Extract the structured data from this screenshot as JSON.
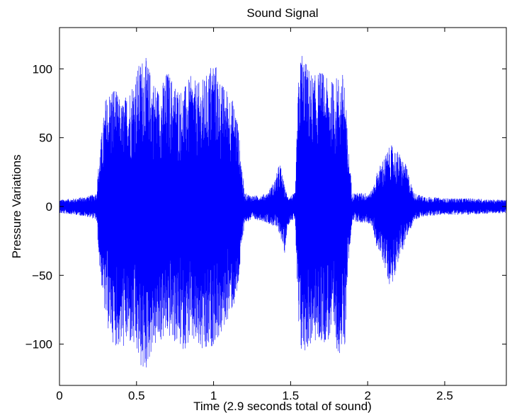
{
  "chart_data": {
    "type": "line",
    "title": "Sound Signal",
    "xlabel": "Time (2.9 seconds total of sound)",
    "ylabel": "Pressure Variations",
    "xlim": [
      0,
      2.9
    ],
    "ylim": [
      -130,
      130
    ],
    "grid": false,
    "legend": "none",
    "series_color": "#0000ff",
    "x_ticks": [
      0,
      0.5,
      1,
      1.5,
      2,
      2.5
    ],
    "x_tick_labels": [
      "0",
      "0.5",
      "1",
      "1.5",
      "2",
      "2.5"
    ],
    "y_ticks": [
      -100,
      -50,
      0,
      50,
      100
    ],
    "y_tick_labels": [
      "−100",
      "−50",
      "0",
      "50",
      "100"
    ],
    "sample_step_seconds": 0.005,
    "envelope": {
      "description": "approximate upper and lower amplitude bounds of the waveform over time",
      "x": [
        0,
        0.1,
        0.2,
        0.24,
        0.26,
        0.3,
        0.35,
        0.4,
        0.45,
        0.5,
        0.55,
        0.6,
        0.65,
        0.7,
        0.75,
        0.8,
        0.85,
        0.9,
        0.95,
        1.0,
        1.05,
        1.1,
        1.15,
        1.2,
        1.25,
        1.3,
        1.35,
        1.4,
        1.43,
        1.46,
        1.48,
        1.5,
        1.53,
        1.55,
        1.57,
        1.6,
        1.65,
        1.7,
        1.75,
        1.8,
        1.85,
        1.87,
        1.9,
        1.95,
        2.0,
        2.03,
        2.06,
        2.1,
        2.15,
        2.2,
        2.25,
        2.3,
        2.35,
        2.4,
        2.5,
        2.6,
        2.7,
        2.8,
        2.9
      ],
      "upper": [
        5,
        6,
        8,
        10,
        40,
        80,
        90,
        75,
        85,
        100,
        112,
        95,
        85,
        100,
        90,
        85,
        95,
        90,
        95,
        110,
        90,
        85,
        70,
        10,
        8,
        8,
        10,
        20,
        33,
        15,
        8,
        8,
        10,
        90,
        117,
        105,
        95,
        100,
        90,
        95,
        98,
        50,
        10,
        10,
        10,
        12,
        25,
        35,
        45,
        40,
        30,
        10,
        8,
        7,
        6,
        6,
        6,
        5,
        5
      ],
      "lower": [
        -5,
        -6,
        -8,
        -10,
        -45,
        -85,
        -100,
        -105,
        -100,
        -110,
        -125,
        -105,
        -100,
        -95,
        -100,
        -105,
        -100,
        -105,
        -112,
        -100,
        -95,
        -80,
        -70,
        -12,
        -10,
        -10,
        -12,
        -15,
        -20,
        -35,
        -15,
        -10,
        -10,
        -95,
        -110,
        -105,
        -100,
        -100,
        -98,
        -105,
        -110,
        -50,
        -10,
        -12,
        -12,
        -15,
        -30,
        -40,
        -60,
        -40,
        -25,
        -10,
        -8,
        -7,
        -6,
        -6,
        -6,
        -5,
        -5
      ]
    }
  }
}
